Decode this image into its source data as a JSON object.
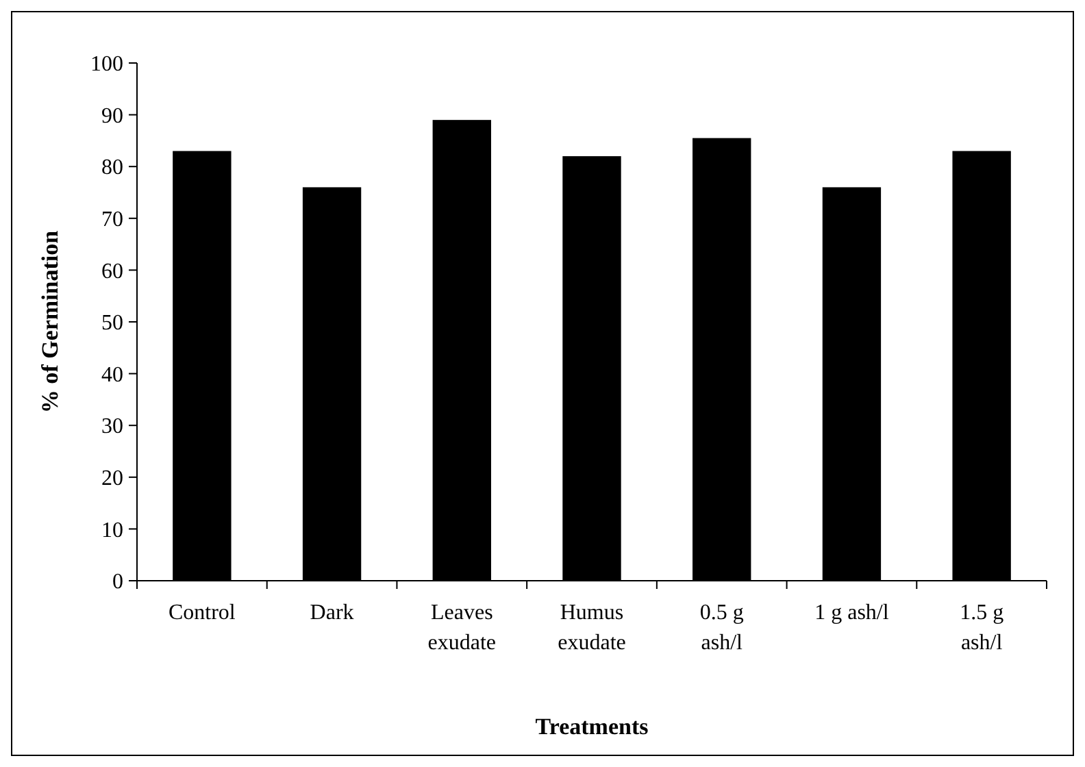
{
  "chart_data": {
    "type": "bar",
    "xlabel": "Treatments",
    "ylabel": "% of Germination",
    "categories": [
      "Control",
      "Dark",
      "Leaves exudate",
      "Humus exudate",
      "0.5 g ash/l",
      "1 g ash/l",
      "1.5 g ash/l"
    ],
    "values": [
      83,
      76,
      89,
      82,
      85.5,
      76,
      83
    ],
    "color": "#000000",
    "ylim": [
      0,
      100
    ],
    "yticks": [
      0,
      10,
      20,
      30,
      40,
      50,
      60,
      70,
      80,
      90,
      100
    ],
    "grid": false
  }
}
